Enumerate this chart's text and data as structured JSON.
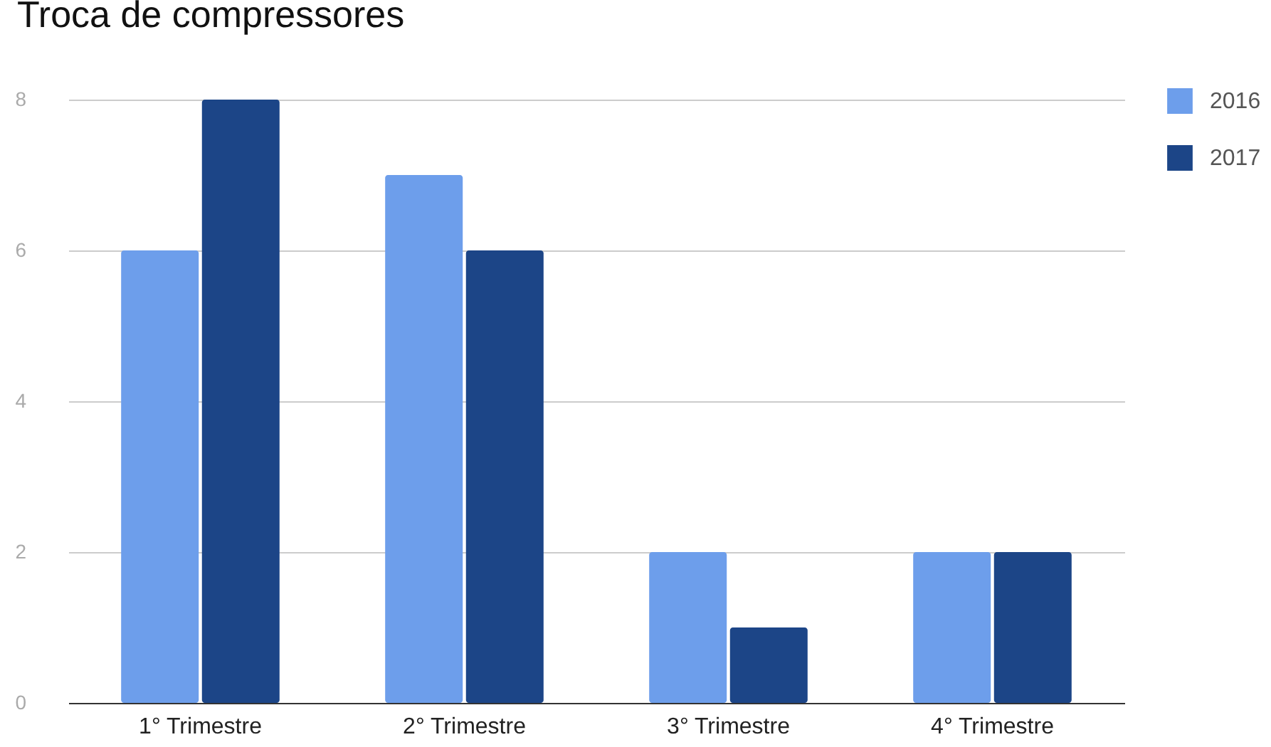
{
  "chart_data": {
    "type": "bar",
    "title": "Troca de compressores",
    "categories": [
      "1° Trimestre",
      "2° Trimestre",
      "3° Trimestre",
      "4° Trimestre"
    ],
    "series": [
      {
        "name": "2016",
        "color": "#6d9eeb",
        "values": [
          6,
          7,
          2,
          2
        ]
      },
      {
        "name": "2017",
        "color": "#1c4587",
        "values": [
          8,
          6,
          1,
          2
        ]
      }
    ],
    "ylim": [
      0,
      8
    ],
    "yticks": [
      0,
      2,
      4,
      6,
      8
    ],
    "grid": "y",
    "legend": "top right"
  }
}
